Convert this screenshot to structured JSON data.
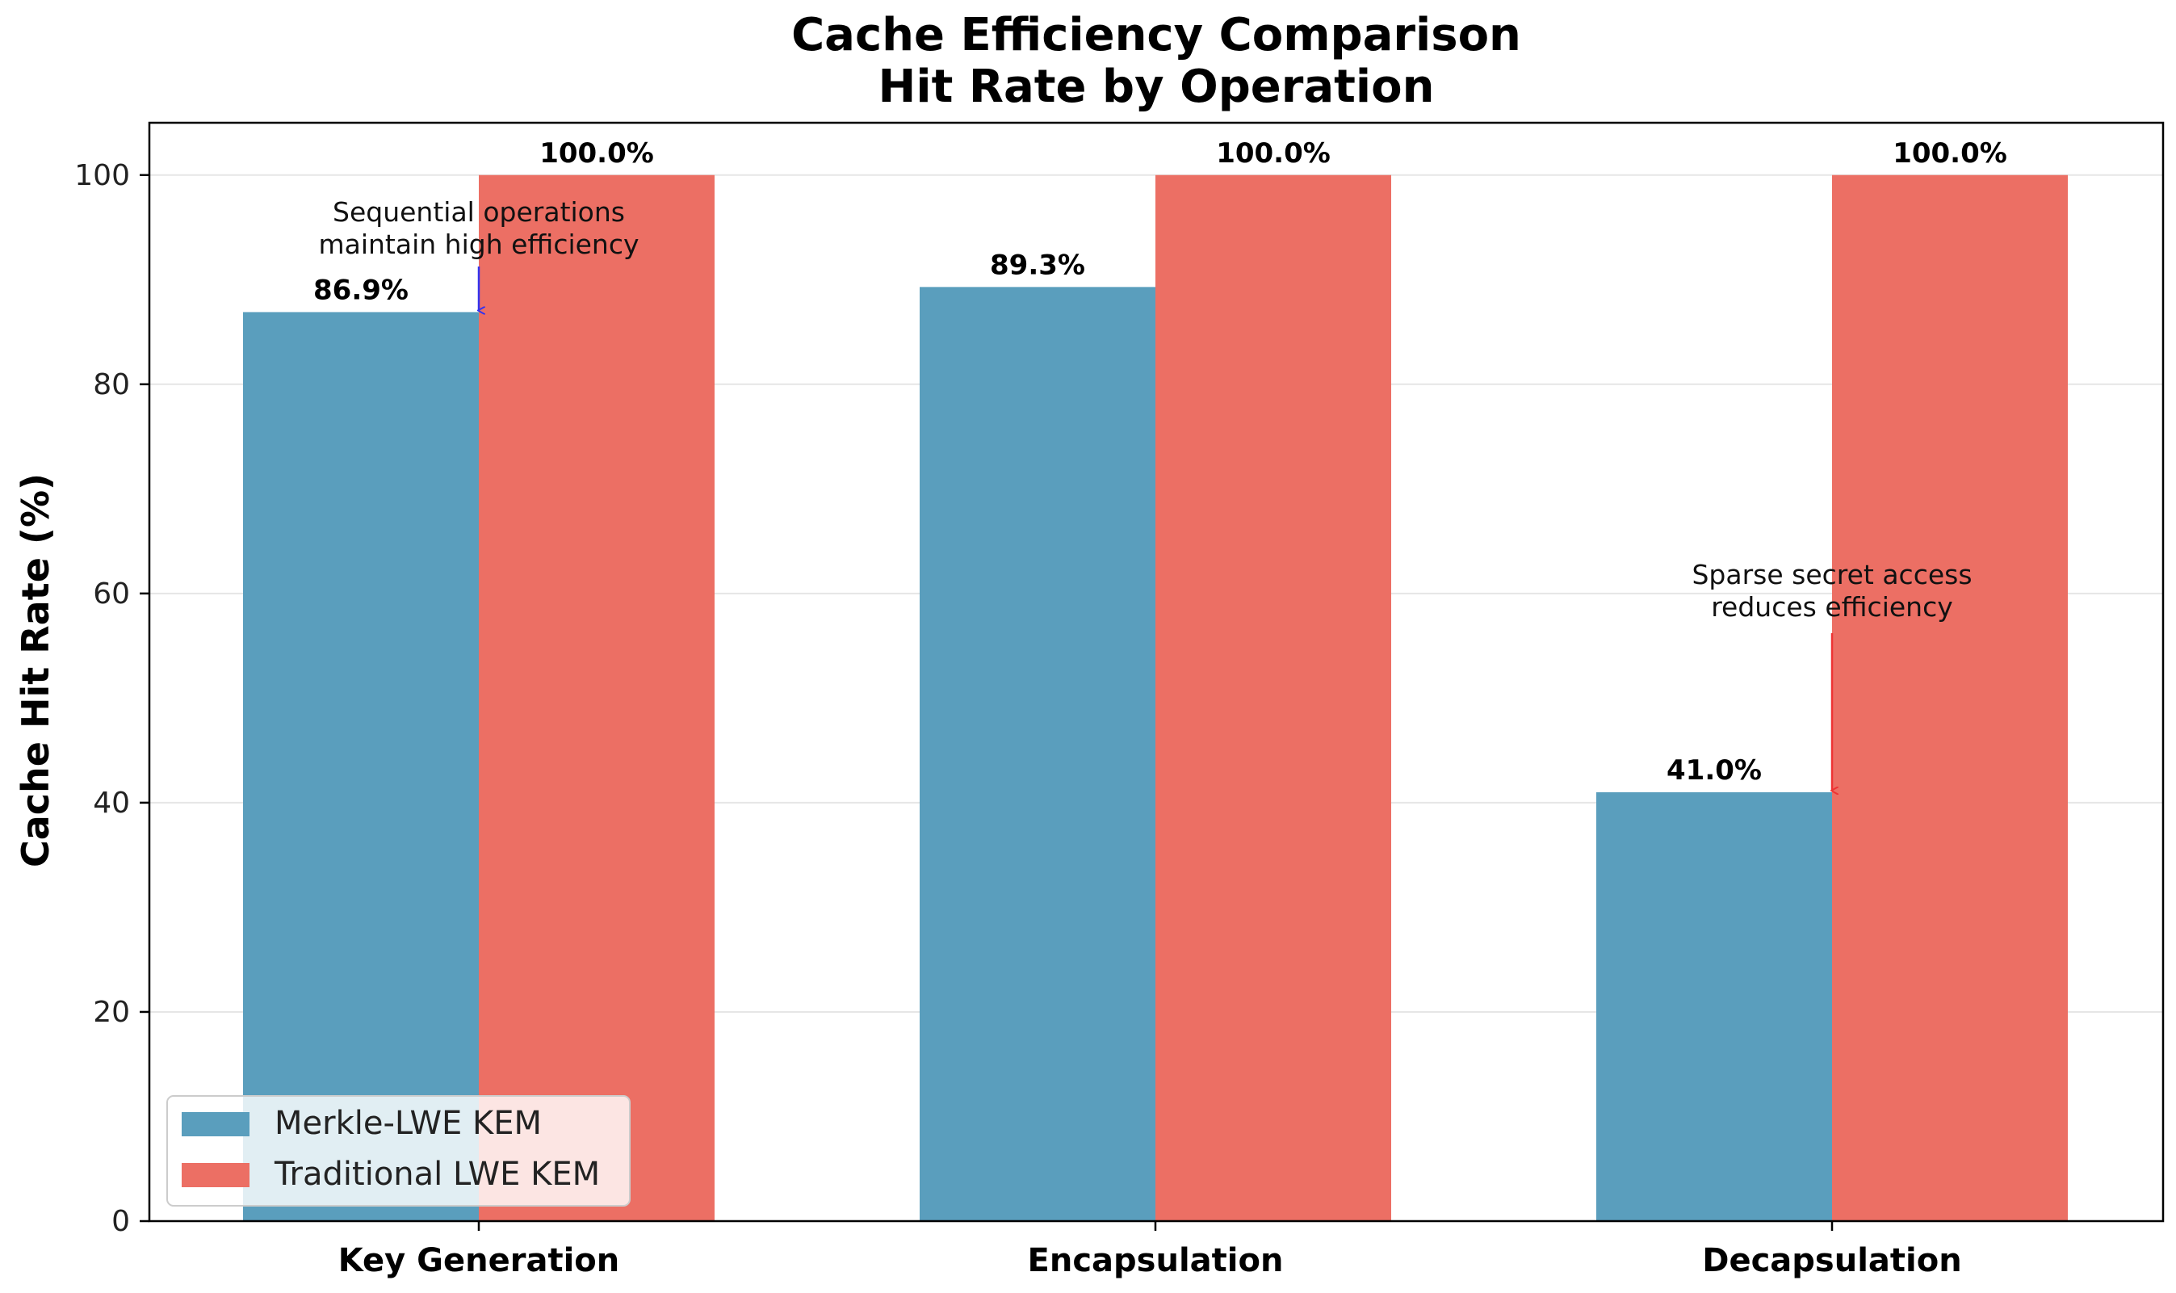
{
  "chart_data": {
    "type": "bar",
    "title": "Cache Efficiency Comparison",
    "subtitle": "Hit Rate by Operation",
    "xlabel": "",
    "ylabel": "Cache Hit Rate (%)",
    "categories": [
      "Key Generation",
      "Encapsulation",
      "Decapsulation"
    ],
    "ylim": [
      0,
      105
    ],
    "yticks": [
      "0",
      "20",
      "40",
      "60",
      "80",
      "100"
    ],
    "grid": "y",
    "legend_position": "lower-left",
    "series": [
      {
        "name": "Merkle-LWE KEM",
        "color": "#5a9ebd",
        "values": [
          86.9,
          89.3,
          41.0
        ],
        "labels": [
          "86.9%",
          "89.3%",
          "41.0%"
        ]
      },
      {
        "name": "Traditional LWE KEM",
        "color": "#ec6f64",
        "values": [
          100.0,
          100.0,
          100.0
        ],
        "labels": [
          "100.0%",
          "100.0%",
          "100.0%"
        ]
      }
    ],
    "annotations": [
      {
        "lines": [
          "Sequential operations",
          "maintain high efficiency"
        ],
        "category_index": 0,
        "point_value": 86.9,
        "arrow_color": "#3333ee"
      },
      {
        "lines": [
          "Sparse secret access",
          "reduces efficiency"
        ],
        "category_index": 2,
        "point_value": 41.0,
        "arrow_color": "#ee3333"
      }
    ]
  }
}
